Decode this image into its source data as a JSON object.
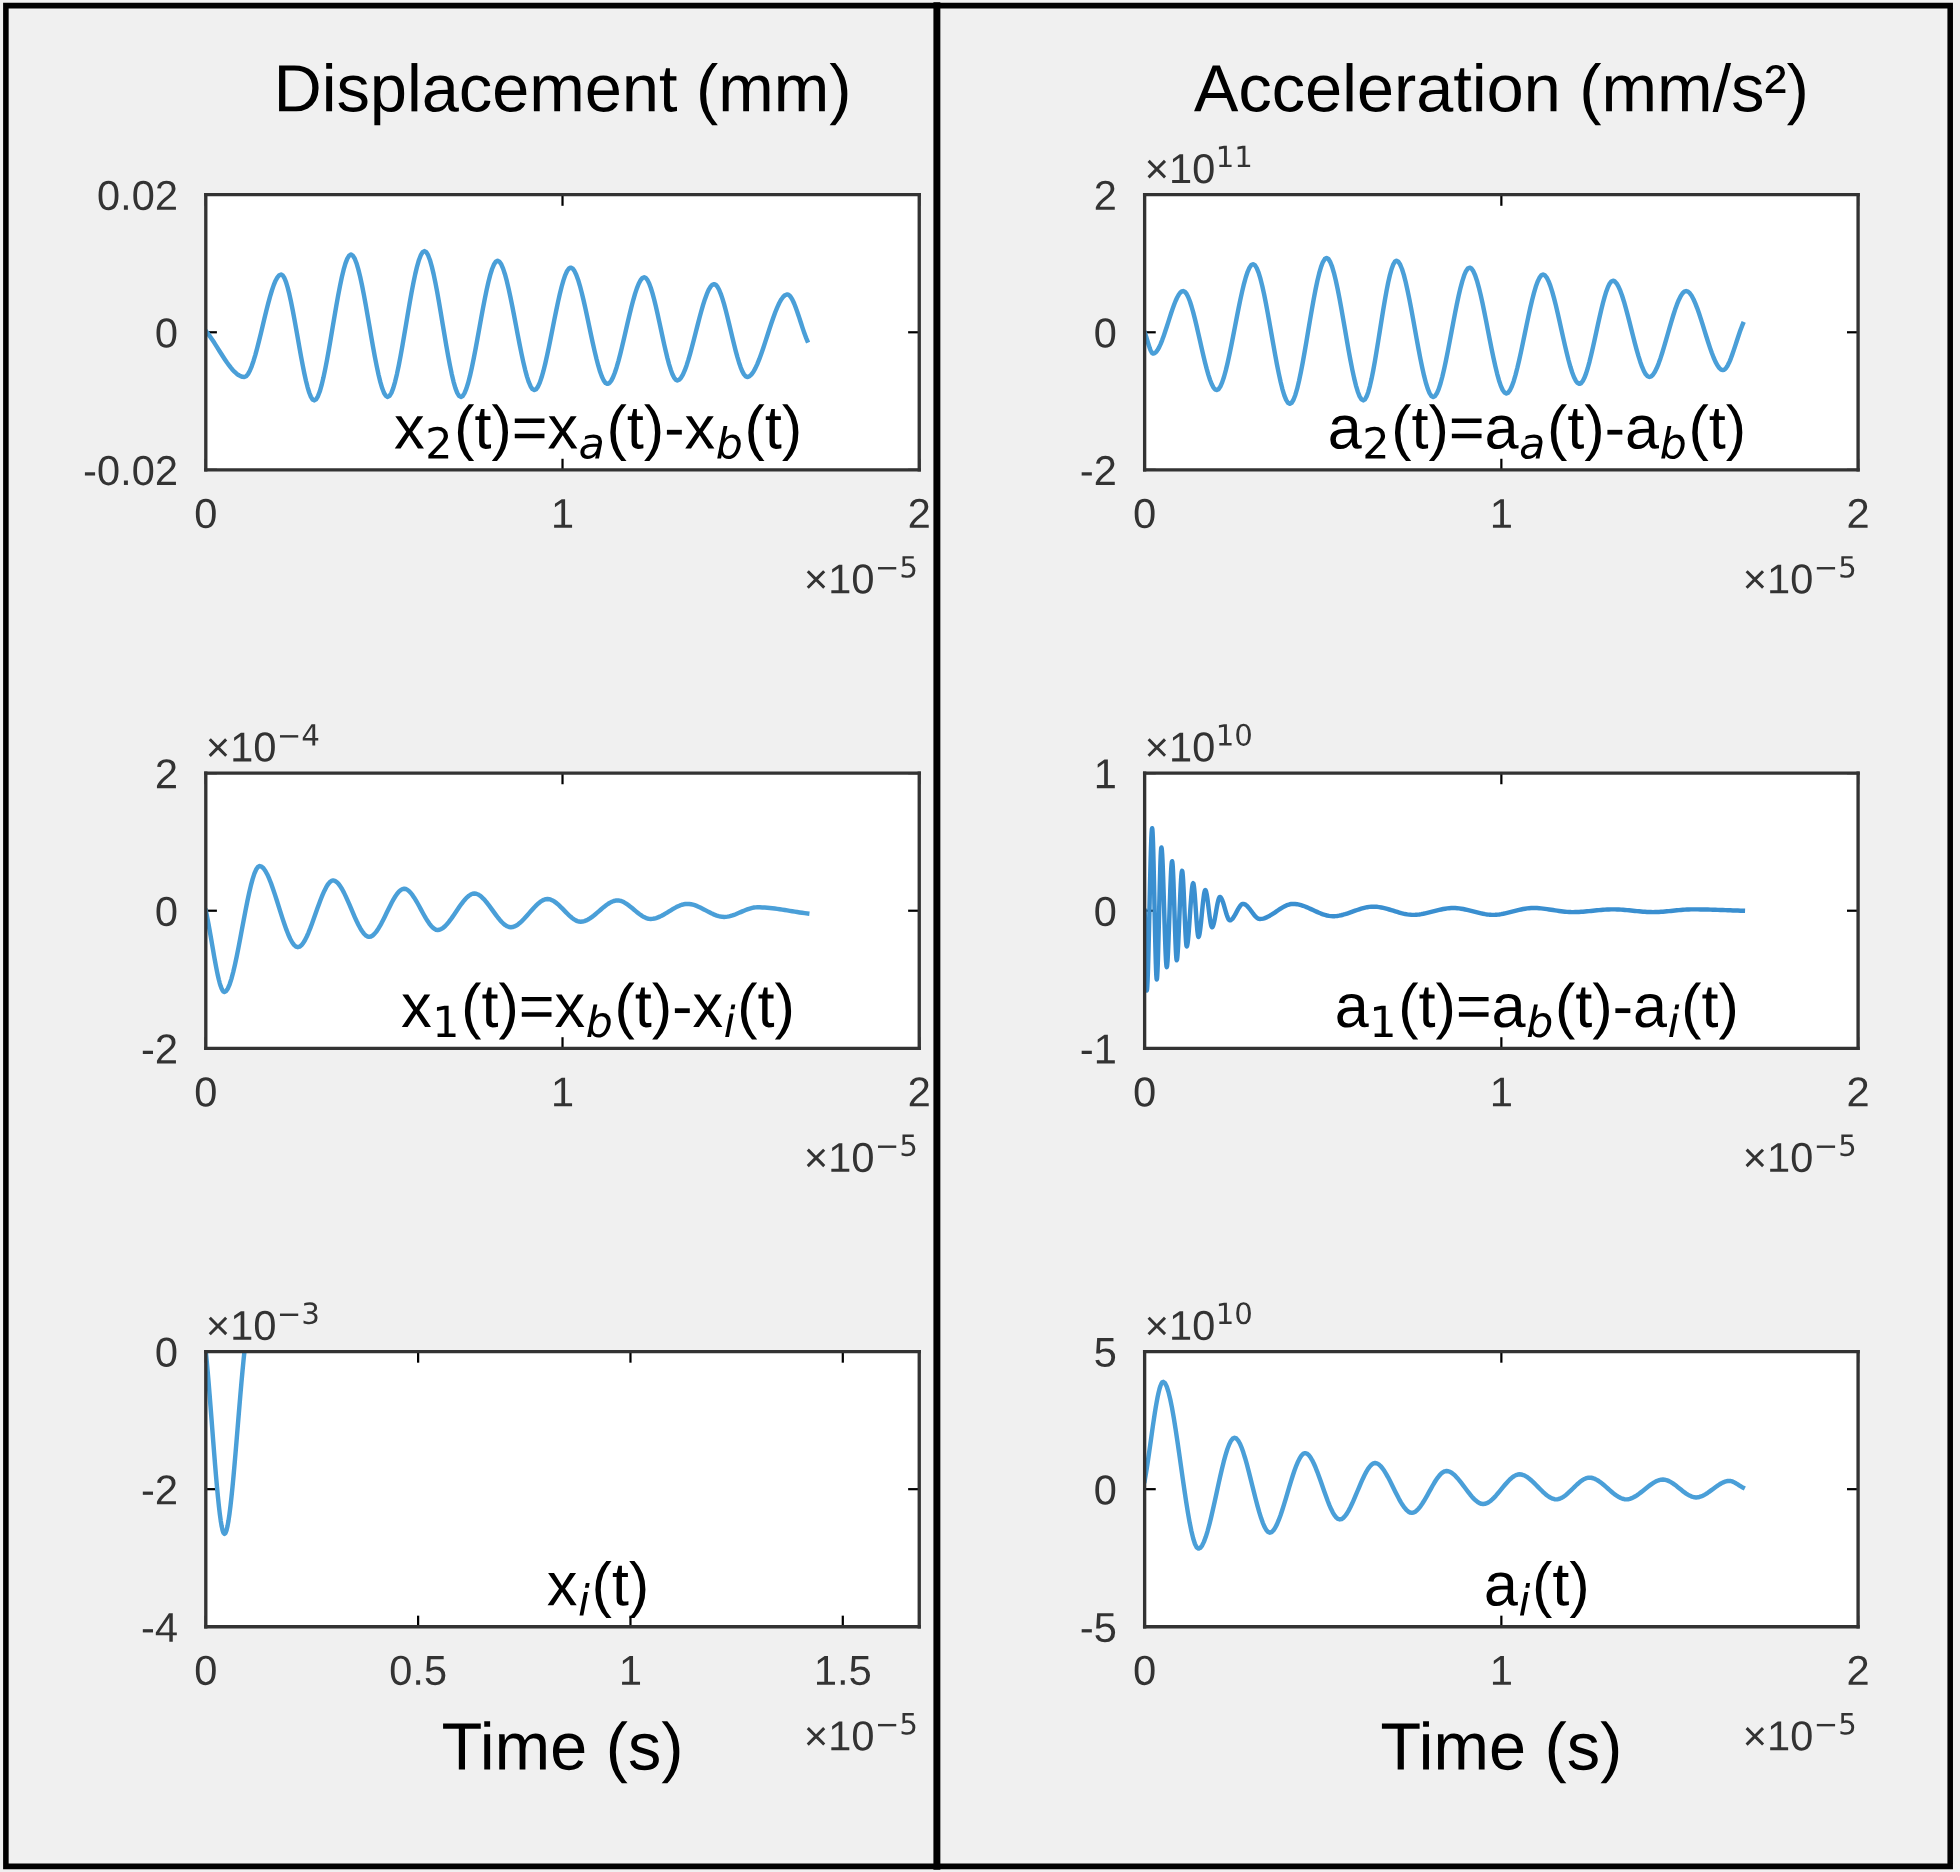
{
  "chart_data": [
    {
      "type": "line",
      "title": "Displacement (mm)",
      "color": "#4a9fd8",
      "xlim": [
        0,
        2
      ],
      "xticks": [
        0,
        1,
        2
      ],
      "ylim": [
        -0.02,
        0.02
      ],
      "yticks": [
        -0.02,
        0,
        0.02
      ],
      "annotations": [
        "x$_{2}$(t)=x$_{a}$(t)-x$_{b}$(t)",
        "×10$^{−5}$"
      ],
      "x": [
        0,
        0.108,
        0.211,
        0.304,
        0.407,
        0.51,
        0.613,
        0.715,
        0.818,
        0.921,
        1.023,
        1.126,
        1.229,
        1.322,
        1.425,
        1.518,
        1.63,
        1.686
      ],
      "values": [
        0.0002,
        -0.0065,
        0.0084,
        -0.0099,
        0.0113,
        -0.0094,
        0.0118,
        -0.0094,
        0.0104,
        -0.0084,
        0.0094,
        -0.0075,
        0.008,
        -0.007,
        0.007,
        -0.0065,
        0.0055,
        -0.0012
      ]
    },
    {
      "type": "line",
      "title": "Acceleration (mm/s²)",
      "color": "#4a9fd8",
      "xlim": [
        0,
        2
      ],
      "xticks": [
        0,
        1,
        2
      ],
      "ylim": [
        -2,
        2
      ],
      "yticks": [
        -2,
        0,
        2
      ],
      "annotations": [
        "a$_{2}$(t)=a$_{a}$(t)-a$_{b}$(t)",
        "×10$^{−5}$",
        "×10$^{11}$"
      ],
      "x": [
        0,
        0.024,
        0.108,
        0.202,
        0.304,
        0.407,
        0.51,
        0.613,
        0.706,
        0.809,
        0.911,
        1.014,
        1.117,
        1.219,
        1.313,
        1.415,
        1.518,
        1.621,
        1.677
      ],
      "values": [
        0,
        -0.31,
        0.6,
        -0.84,
        0.99,
        -1.04,
        1.08,
        -0.99,
        1.04,
        -0.94,
        0.94,
        -0.89,
        0.84,
        -0.75,
        0.75,
        -0.65,
        0.6,
        -0.55,
        0.12
      ]
    },
    {
      "type": "line",
      "color": "#4a9fd8",
      "xlim": [
        0,
        2
      ],
      "xticks": [
        0,
        1,
        2
      ],
      "ylim": [
        -2,
        2
      ],
      "yticks": [
        -2,
        0,
        2
      ],
      "annotations": [
        "x$_{1}$(t)=x$_{b}$(t)-x$_{i}$(t)",
        "×10$^{−5}$",
        "×10$^{−4}$"
      ],
      "x": [
        0,
        0.052,
        0.151,
        0.258,
        0.357,
        0.458,
        0.556,
        0.65,
        0.753,
        0.855,
        0.958,
        1.051,
        1.154,
        1.247,
        1.35,
        1.453,
        1.546,
        1.686
      ],
      "values": [
        0,
        -1.18,
        0.65,
        -0.53,
        0.44,
        -0.38,
        0.32,
        -0.28,
        0.25,
        -0.24,
        0.17,
        -0.16,
        0.15,
        -0.12,
        0.1,
        -0.09,
        0.05,
        -0.04
      ]
    },
    {
      "type": "line",
      "color": "#3a8fd0",
      "xlim": [
        0,
        2
      ],
      "xticks": [
        0,
        1,
        2
      ],
      "ylim": [
        -1,
        1
      ],
      "yticks": [
        -1,
        0,
        1
      ],
      "annotations": [
        "a$_{1}$(t)=a$_{b}$(t)-a$_{i}$(t)",
        "×10$^{−5}$",
        "×10$^{10}$"
      ],
      "x": [
        0,
        0.006,
        0.021,
        0.034,
        0.047,
        0.062,
        0.077,
        0.09,
        0.105,
        0.118,
        0.136,
        0.151,
        0.17,
        0.189,
        0.211,
        0.239,
        0.276,
        0.323,
        0.416,
        0.528,
        0.641,
        0.753,
        0.865,
        0.977,
        1.089,
        1.201,
        1.313,
        1.425,
        1.537,
        1.677
      ],
      "values": [
        0,
        -0.58,
        0.6,
        -0.5,
        0.46,
        -0.41,
        0.36,
        -0.36,
        0.29,
        -0.26,
        0.2,
        -0.19,
        0.15,
        -0.12,
        0.1,
        -0.07,
        0.05,
        -0.06,
        0.05,
        -0.04,
        0.03,
        -0.03,
        0.02,
        -0.03,
        0.02,
        -0.01,
        0.01,
        -0.01,
        0.01,
        0
      ]
    },
    {
      "type": "line",
      "color": "#4a9fd8",
      "xlabel": "Time (s)",
      "xlim": [
        0,
        1.68
      ],
      "xticks": [
        0,
        0.5,
        1,
        1.5
      ],
      "ylim": [
        -4,
        0
      ],
      "yticks": [
        -4,
        -2,
        0
      ],
      "annotations": [
        "x$_{i}$(t)",
        "×10$^{−5}$",
        "×10$^{−3}$"
      ],
      "x": [
        0,
        0.044,
        0.091
      ],
      "values": [
        0,
        -2.65,
        0
      ]
    },
    {
      "type": "line",
      "color": "#4a9fd8",
      "xlabel": "Time (s)",
      "xlim": [
        0,
        2
      ],
      "xticks": [
        0,
        1,
        2
      ],
      "ylim": [
        -5,
        5
      ],
      "yticks": [
        -5,
        0,
        5
      ],
      "annotations": [
        "a$_{i}$(t)",
        "×10$^{−5}$",
        "×10$^{10}$"
      ],
      "x": [
        0,
        0.052,
        0.151,
        0.252,
        0.351,
        0.45,
        0.547,
        0.646,
        0.749,
        0.846,
        0.949,
        1.051,
        1.154,
        1.247,
        1.35,
        1.453,
        1.546,
        1.639,
        1.677
      ],
      "values": [
        0.3,
        3.9,
        -2.16,
        1.87,
        -1.58,
        1.31,
        -1.1,
        0.95,
        -0.86,
        0.66,
        -0.54,
        0.54,
        -0.37,
        0.42,
        -0.37,
        0.35,
        -0.3,
        0.3,
        0.06
      ]
    }
  ]
}
